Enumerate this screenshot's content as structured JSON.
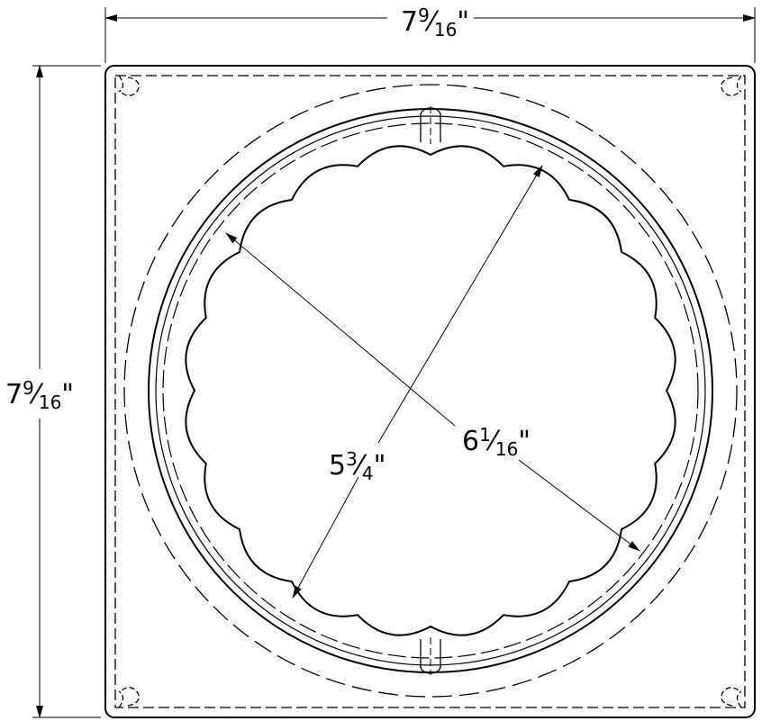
{
  "drawing": {
    "dimensions": {
      "width": {
        "whole": "7",
        "num": "9",
        "den": "16",
        "unit": "\""
      },
      "height": {
        "whole": "7",
        "num": "9",
        "den": "16",
        "unit": "\""
      },
      "inner_diameter": {
        "whole": "5",
        "num": "3",
        "den": "4",
        "unit": "\""
      },
      "outer_diameter": {
        "whole": "6",
        "num": "1",
        "den": "16",
        "unit": "\""
      }
    },
    "colors": {
      "line": "#000000",
      "background": "#ffffff"
    }
  }
}
